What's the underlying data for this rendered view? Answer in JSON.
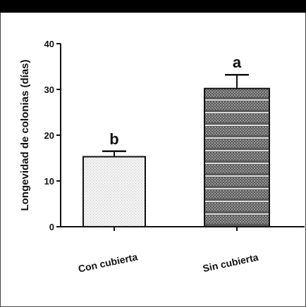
{
  "chart_data": {
    "type": "bar",
    "ylabel": "Longevidad de colonias (días)",
    "ylim": [
      0,
      40
    ],
    "yticks": [
      0,
      10,
      20,
      30,
      40
    ],
    "categories": [
      "Con cubierta",
      "Sin cubierta"
    ],
    "values": [
      15.3,
      30.2
    ],
    "errors": [
      1.2,
      3.0
    ],
    "significance": [
      "b",
      "a"
    ],
    "grid": false,
    "colors": {
      "bar_light_fill": "#e6e6e6",
      "bar_dark_fill": "#6f6f6f",
      "outline": "#111111"
    }
  }
}
